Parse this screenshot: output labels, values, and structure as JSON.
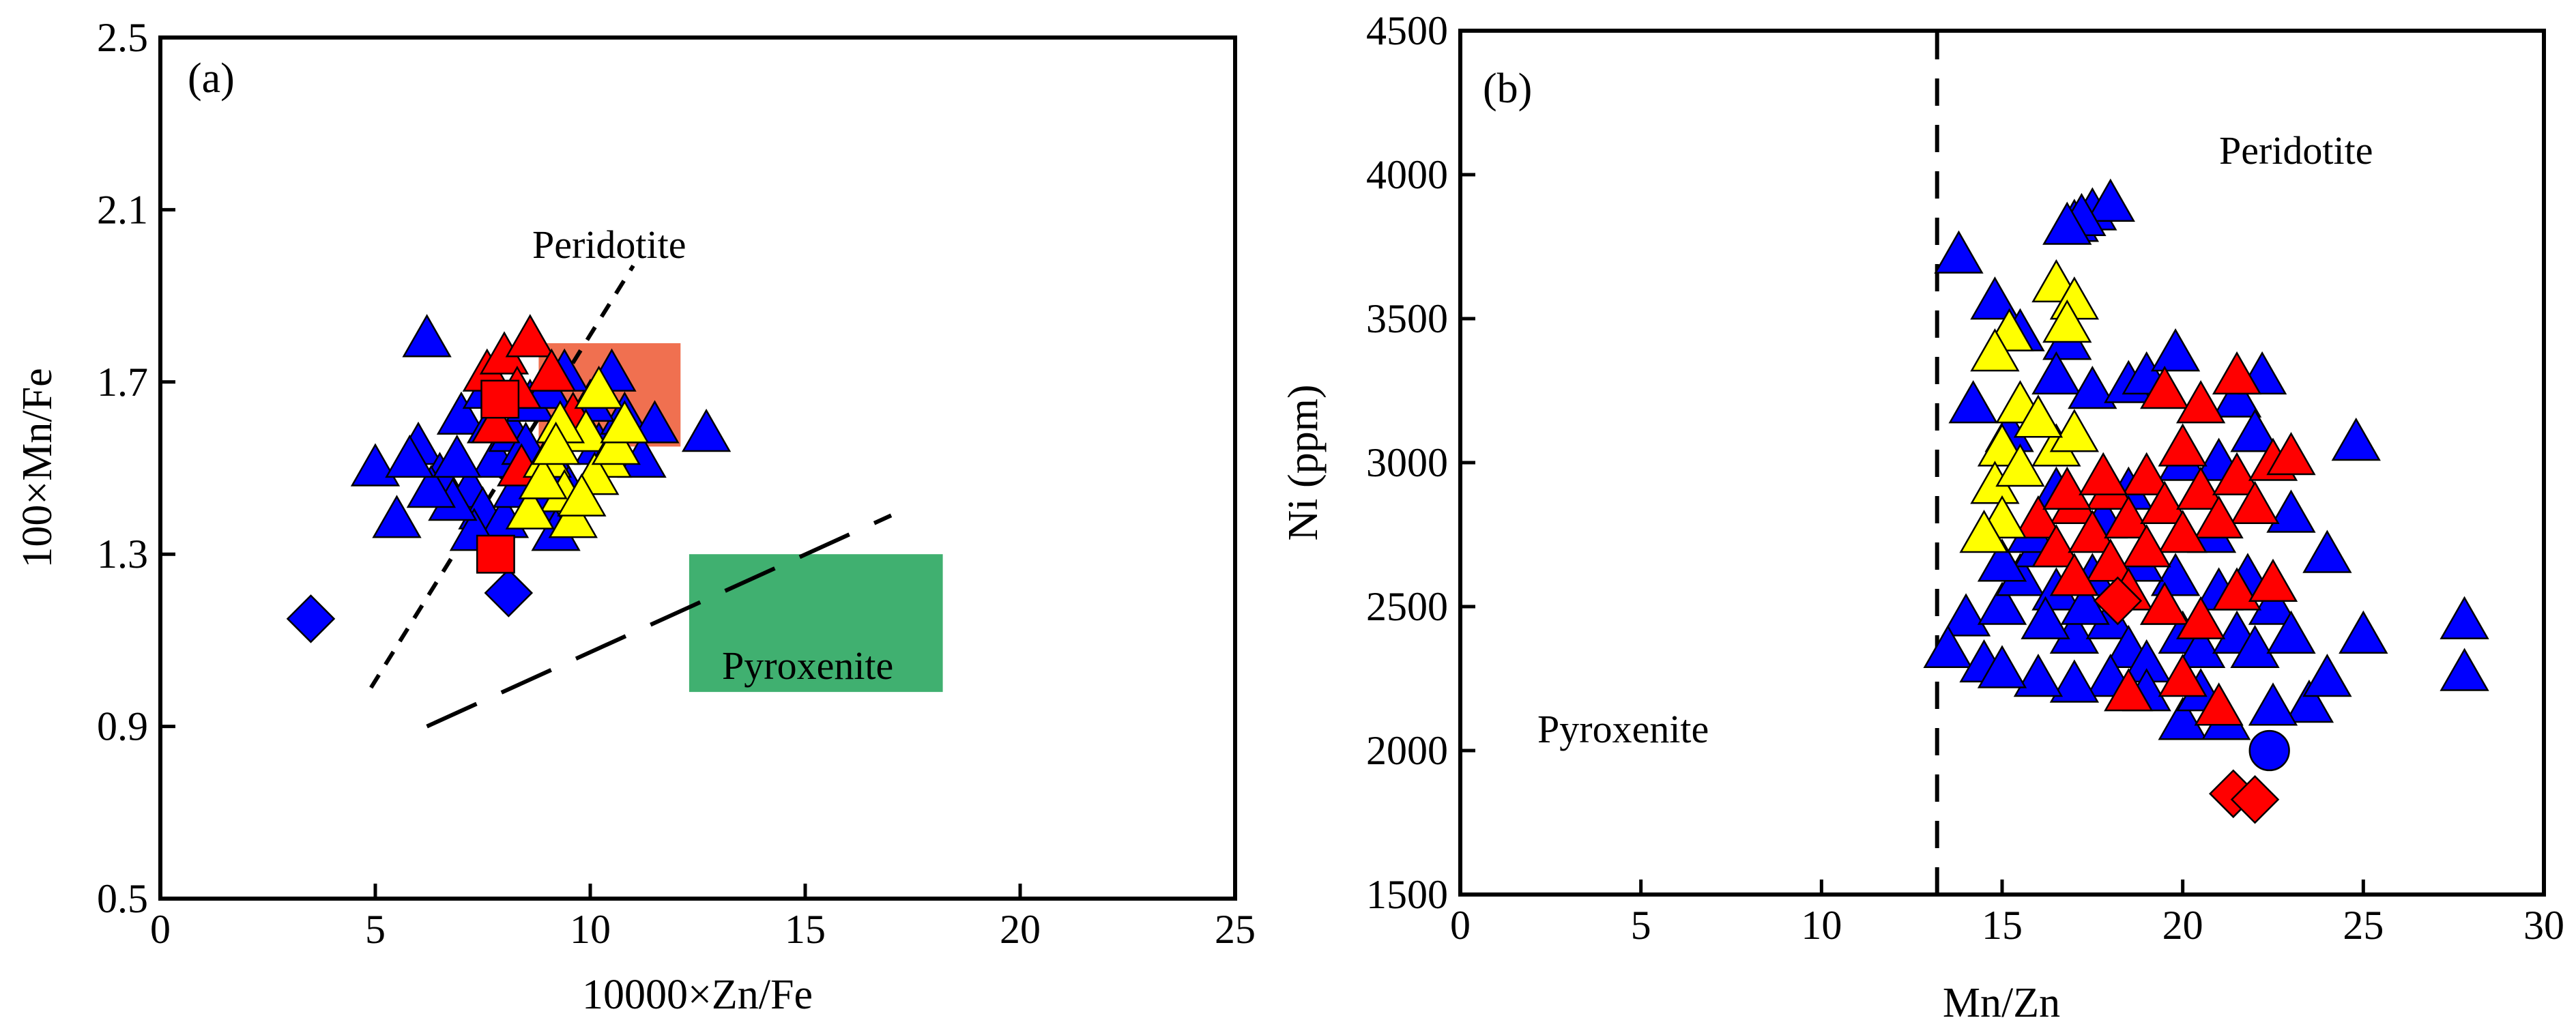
{
  "chart_data": [
    {
      "type": "scatter",
      "panel_label": "(a)",
      "xlabel": "10000×Zn/Fe",
      "ylabel": "100×Mn/Fe",
      "xlim": [
        0,
        25
      ],
      "ylim": [
        0.5,
        2.5
      ],
      "x_ticks": [
        "0",
        "5",
        "10",
        "15",
        "20",
        "25"
      ],
      "y_ticks": [
        "0.5",
        "0.9",
        "1.3",
        "1.7",
        "2.1",
        "2.5"
      ],
      "grid": false,
      "regions": [
        {
          "label": "",
          "type": "rect",
          "x": [
            8.8,
            12.1
          ],
          "y": [
            1.55,
            1.79
          ],
          "color": "#f07050"
        },
        {
          "label": "Pyroxenite",
          "type": "rect",
          "x": [
            12.3,
            18.2
          ],
          "y": [
            0.98,
            1.3
          ],
          "color": "#40b070"
        }
      ],
      "lines": [
        {
          "label": "Peridotite",
          "style": "short-dash",
          "points": [
            [
              4.9,
              0.99
            ],
            [
              11.0,
              1.97
            ]
          ]
        },
        {
          "label": "",
          "style": "long-dash",
          "points": [
            [
              6.2,
              0.9
            ],
            [
              17.0,
              1.39
            ]
          ]
        }
      ],
      "annotations": [
        "Peridotite",
        "Pyroxenite"
      ],
      "series": [
        {
          "marker": "triangle",
          "color": "#0000ff",
          "points": [
            [
              6.2,
              1.8
            ],
            [
              5.0,
              1.5
            ],
            [
              5.5,
              1.38
            ],
            [
              6.0,
              1.55
            ],
            [
              6.5,
              1.48
            ],
            [
              7.0,
              1.62
            ],
            [
              7.2,
              1.45
            ],
            [
              7.5,
              1.4
            ],
            [
              7.8,
              1.52
            ],
            [
              8.2,
              1.58
            ],
            [
              8.6,
              1.65
            ],
            [
              9.0,
              1.68
            ],
            [
              9.2,
              1.5
            ],
            [
              9.5,
              1.45
            ],
            [
              9.8,
              1.6
            ],
            [
              10.2,
              1.55
            ],
            [
              10.5,
              1.72
            ],
            [
              10.8,
              1.62
            ],
            [
              11.2,
              1.52
            ],
            [
              11.5,
              1.6
            ],
            [
              12.7,
              1.58
            ],
            [
              8.0,
              1.38
            ],
            [
              8.8,
              1.42
            ],
            [
              9.2,
              1.35
            ],
            [
              7.3,
              1.35
            ],
            [
              6.8,
              1.42
            ],
            [
              6.3,
              1.45
            ],
            [
              8.3,
              1.45
            ],
            [
              7.7,
              1.6
            ],
            [
              10.0,
              1.65
            ],
            [
              9.4,
              1.72
            ],
            [
              5.8,
              1.52
            ],
            [
              6.9,
              1.52
            ],
            [
              7.6,
              1.68
            ],
            [
              8.5,
              1.55
            ]
          ]
        },
        {
          "marker": "diamond",
          "color": "#0000ff",
          "points": [
            [
              3.5,
              1.15
            ],
            [
              8.1,
              1.21
            ]
          ]
        },
        {
          "marker": "triangle",
          "color": "#ff0000",
          "points": [
            [
              7.6,
              1.72
            ],
            [
              8.0,
              1.76
            ],
            [
              8.6,
              1.8
            ],
            [
              9.1,
              1.72
            ],
            [
              7.8,
              1.6
            ],
            [
              8.3,
              1.68
            ],
            [
              9.6,
              1.62
            ],
            [
              8.4,
              1.5
            ]
          ]
        },
        {
          "marker": "square",
          "color": "#ff0000",
          "points": [
            [
              7.8,
              1.3
            ],
            [
              7.9,
              1.66
            ]
          ]
        },
        {
          "marker": "triangle",
          "color": "#ffff00",
          "points": [
            [
              9.0,
              1.52
            ],
            [
              9.4,
              1.44
            ],
            [
              9.9,
              1.58
            ],
            [
              10.2,
              1.68
            ],
            [
              10.4,
              1.52
            ],
            [
              8.6,
              1.4
            ],
            [
              9.6,
              1.38
            ],
            [
              10.1,
              1.48
            ],
            [
              10.6,
              1.55
            ],
            [
              8.9,
              1.47
            ],
            [
              9.3,
              1.6
            ],
            [
              10.8,
              1.6
            ],
            [
              9.8,
              1.43
            ],
            [
              9.2,
              1.55
            ]
          ]
        }
      ]
    },
    {
      "type": "scatter",
      "panel_label": "(b)",
      "xlabel": "Mn/Zn",
      "ylabel": "Ni (ppm)",
      "xlim": [
        0,
        30
      ],
      "ylim": [
        1500,
        4500
      ],
      "x_ticks": [
        "0",
        "5",
        "10",
        "15",
        "20",
        "25",
        "30"
      ],
      "y_ticks": [
        "1500",
        "2000",
        "2500",
        "3000",
        "3500",
        "4000",
        "4500"
      ],
      "grid": false,
      "lines": [
        {
          "label": "",
          "style": "dashed-vertical",
          "points": [
            [
              13.2,
              1500
            ],
            [
              13.2,
              4500
            ]
          ]
        }
      ],
      "annotations": [
        "Peridotite",
        "Pyroxenite"
      ],
      "series": [
        {
          "marker": "triangle",
          "color": "#0000ff",
          "points": [
            [
              13.8,
              3720
            ],
            [
              17.0,
              3830
            ],
            [
              17.5,
              3870
            ],
            [
              18.0,
              3900
            ],
            [
              17.2,
              3850
            ],
            [
              16.8,
              3820
            ],
            [
              14.8,
              3560
            ],
            [
              15.5,
              3450
            ],
            [
              16.8,
              3420
            ],
            [
              14.2,
              3200
            ],
            [
              15.2,
              3100
            ],
            [
              16.5,
              3300
            ],
            [
              17.5,
              3250
            ],
            [
              18.5,
              3270
            ],
            [
              19.0,
              3300
            ],
            [
              19.8,
              3380
            ],
            [
              21.5,
              3220
            ],
            [
              22.2,
              3300
            ],
            [
              24.8,
              3070
            ],
            [
              14.0,
              2460
            ],
            [
              13.5,
              2350
            ],
            [
              14.5,
              2300
            ],
            [
              15.0,
              2500
            ],
            [
              15.5,
              2600
            ],
            [
              16.0,
              2700
            ],
            [
              16.5,
              2550
            ],
            [
              17.0,
              2400
            ],
            [
              17.5,
              2600
            ],
            [
              18.0,
              2450
            ],
            [
              18.5,
              2350
            ],
            [
              19.0,
              2300
            ],
            [
              19.5,
              2500
            ],
            [
              20.0,
              2400
            ],
            [
              20.5,
              2350
            ],
            [
              21.0,
              2550
            ],
            [
              21.5,
              2400
            ],
            [
              22.0,
              2350
            ],
            [
              22.5,
              2500
            ],
            [
              23.0,
              2400
            ],
            [
              23.5,
              2160
            ],
            [
              24.0,
              2680
            ],
            [
              25.0,
              2400
            ],
            [
              27.8,
              2450
            ],
            [
              27.8,
              2270
            ],
            [
              20.0,
              2100
            ],
            [
              19.0,
              2200
            ],
            [
              18.0,
              2250
            ],
            [
              17.0,
              2230
            ],
            [
              16.0,
              2250
            ],
            [
              15.0,
              2280
            ],
            [
              20.8,
              2750
            ],
            [
              21.8,
              2600
            ],
            [
              23.0,
              2820
            ],
            [
              24.0,
              2250
            ],
            [
              22.0,
              3100
            ],
            [
              21.0,
              3000
            ],
            [
              20.0,
              3000
            ],
            [
              19.5,
              2850
            ],
            [
              18.5,
              2900
            ],
            [
              17.8,
              2800
            ],
            [
              16.5,
              2900
            ],
            [
              15.8,
              2750
            ],
            [
              15.0,
              2650
            ],
            [
              20.5,
              2200
            ],
            [
              21.2,
              2100
            ],
            [
              22.5,
              2150
            ],
            [
              19.8,
              2600
            ],
            [
              18.8,
              2650
            ],
            [
              17.3,
              2500
            ],
            [
              16.2,
              2450
            ]
          ]
        },
        {
          "marker": "circle",
          "color": "#0000ff",
          "points": [
            [
              22.4,
              2000
            ]
          ]
        },
        {
          "marker": "triangle",
          "color": "#ff0000",
          "points": [
            [
              19.5,
              3250
            ],
            [
              20.5,
              3200
            ],
            [
              21.5,
              3300
            ],
            [
              20.0,
              3050
            ],
            [
              19.0,
              2950
            ],
            [
              18.0,
              2900
            ],
            [
              17.0,
              2850
            ],
            [
              16.0,
              2800
            ],
            [
              16.5,
              2700
            ],
            [
              17.5,
              2750
            ],
            [
              18.5,
              2800
            ],
            [
              19.5,
              2850
            ],
            [
              20.5,
              2900
            ],
            [
              21.5,
              2950
            ],
            [
              22.5,
              3000
            ],
            [
              23.0,
              3020
            ],
            [
              22.0,
              2850
            ],
            [
              21.0,
              2800
            ],
            [
              20.0,
              2750
            ],
            [
              19.0,
              2700
            ],
            [
              18.0,
              2650
            ],
            [
              17.0,
              2600
            ],
            [
              18.5,
              2550
            ],
            [
              19.5,
              2500
            ],
            [
              20.5,
              2450
            ],
            [
              21.5,
              2550
            ],
            [
              22.5,
              2580
            ],
            [
              21.0,
              2150
            ],
            [
              20.0,
              2250
            ],
            [
              18.5,
              2200
            ],
            [
              16.8,
              2900
            ],
            [
              17.8,
              2950
            ]
          ]
        },
        {
          "marker": "diamond",
          "color": "#ff0000",
          "points": [
            [
              18.2,
              2520
            ],
            [
              21.4,
              1850
            ],
            [
              22.0,
              1830
            ]
          ]
        },
        {
          "marker": "triangle",
          "color": "#ffff00",
          "points": [
            [
              16.5,
              3620
            ],
            [
              17.0,
              3560
            ],
            [
              16.8,
              3480
            ],
            [
              15.2,
              3450
            ],
            [
              14.8,
              3380
            ],
            [
              15.5,
              3200
            ],
            [
              15.0,
              3050
            ],
            [
              14.8,
              2920
            ],
            [
              15.5,
              2980
            ],
            [
              15.0,
              2800
            ],
            [
              14.5,
              2750
            ],
            [
              16.5,
              3050
            ],
            [
              17.0,
              3100
            ],
            [
              16.0,
              3150
            ]
          ]
        }
      ]
    }
  ],
  "region_labels": {
    "a_peridotite": "Peridotite",
    "a_pyroxenite": "Pyroxenite",
    "b_peridotite": "Peridotite",
    "b_pyroxenite": "Pyroxenite"
  }
}
